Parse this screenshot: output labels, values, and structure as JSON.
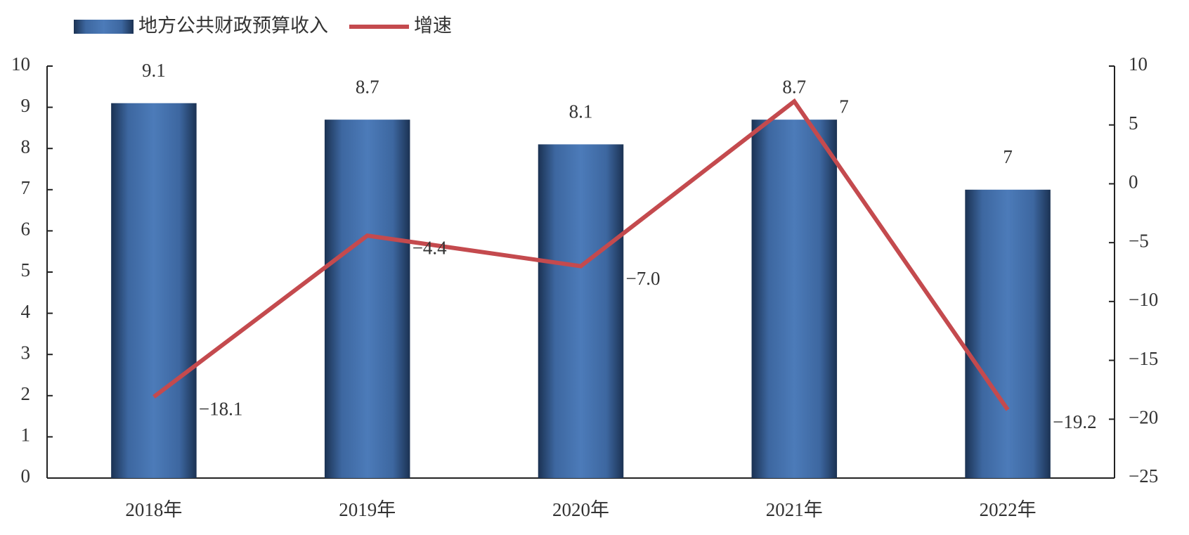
{
  "chart_data": {
    "type": "bar",
    "categories": [
      "2018年",
      "2019年",
      "2020年",
      "2021年",
      "2022年"
    ],
    "series": [
      {
        "name": "地方公共财政预算收入",
        "type": "bar",
        "color": "#3f6aa3",
        "values": [
          9.1,
          8.7,
          8.1,
          8.7,
          7
        ]
      },
      {
        "name": "增速",
        "type": "line",
        "axis": "y2",
        "color": "#c44a4e",
        "values": [
          -18.1,
          -4.4,
          -7.0,
          7,
          -19.2
        ],
        "value_labels": [
          "−18.1",
          "−4.4",
          "−7.0",
          "7",
          "−19.2"
        ]
      }
    ],
    "ylim": [
      0,
      10
    ],
    "yticks": [
      0,
      1,
      2,
      3,
      4,
      5,
      6,
      7,
      8,
      9,
      10
    ],
    "y2lim": [
      -25,
      10
    ],
    "y2ticks": [
      {
        "value": -25,
        "label": "−25"
      },
      {
        "value": -20,
        "label": "−20"
      },
      {
        "value": -15,
        "label": "−15"
      },
      {
        "value": -10,
        "label": "−10"
      },
      {
        "value": -5,
        "label": "−5"
      },
      0,
      5,
      10
    ],
    "legend": "top-left"
  }
}
